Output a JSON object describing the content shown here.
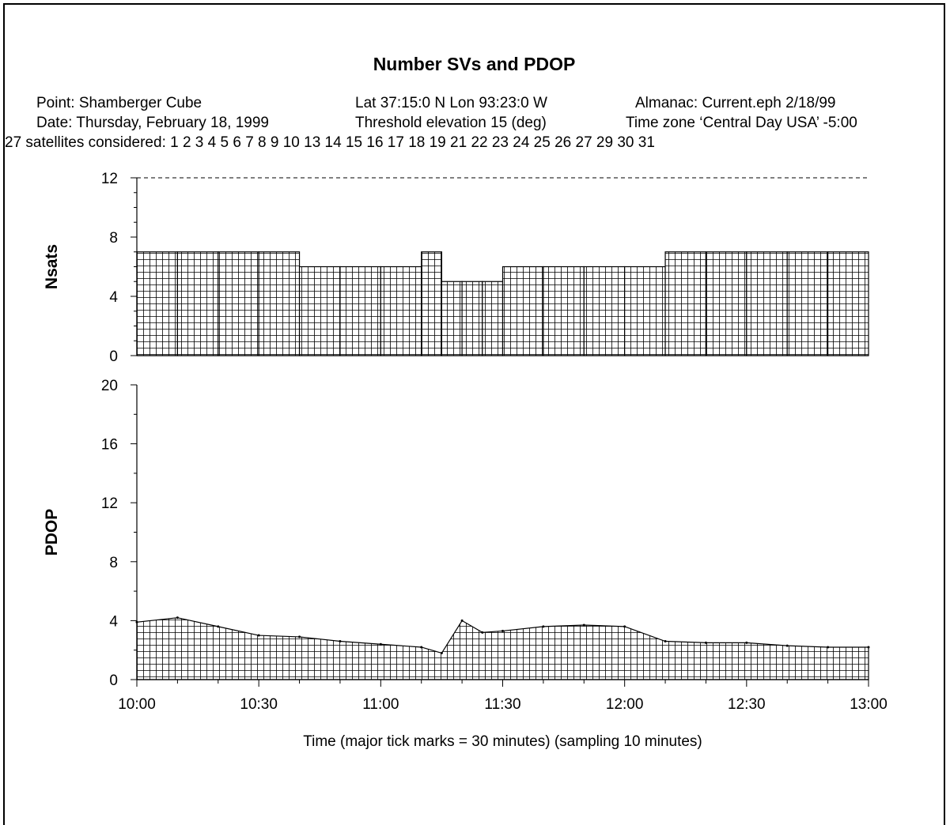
{
  "chart_data": [
    {
      "type": "bar",
      "title": "Number SVs and PDOP",
      "ylabel": "Nsats",
      "ylim": [
        0,
        12
      ],
      "yticks": [
        "0",
        "4",
        "8",
        "12"
      ],
      "series": [
        {
          "x_start": [
            "10:00",
            "10:10",
            "10:20",
            "10:30",
            "10:40",
            "10:50",
            "11:00",
            "11:10",
            "11:15",
            "11:20",
            "11:25",
            "11:30",
            "11:40",
            "11:50",
            "12:00",
            "12:10",
            "12:20",
            "12:30",
            "12:40",
            "12:50"
          ],
          "x_end": [
            "10:10",
            "10:20",
            "10:30",
            "10:40",
            "10:50",
            "11:00",
            "11:10",
            "11:15",
            "11:20",
            "11:25",
            "11:30",
            "11:40",
            "11:50",
            "12:00",
            "12:10",
            "12:20",
            "12:30",
            "12:40",
            "12:50",
            "13:00"
          ],
          "values": [
            7,
            7,
            7,
            7,
            6,
            6,
            6,
            7,
            5,
            5,
            5,
            6,
            6,
            6,
            6,
            7,
            7,
            7,
            7,
            7
          ]
        }
      ],
      "reference_line": {
        "y": 12,
        "style": "dashed"
      }
    },
    {
      "type": "area",
      "ylabel": "PDOP",
      "ylim": [
        0,
        20
      ],
      "yticks": [
        "0",
        "4",
        "8",
        "12",
        "16",
        "20"
      ],
      "xlabel": "Time (major tick marks = 30 minutes) (sampling 10 minutes)",
      "xticks": [
        "10:00",
        "10:30",
        "11:00",
        "11:30",
        "12:00",
        "12:30",
        "13:00"
      ],
      "series": [
        {
          "x": [
            "10:00",
            "10:10",
            "10:20",
            "10:30",
            "10:40",
            "10:50",
            "11:00",
            "11:10",
            "11:15",
            "11:20",
            "11:25",
            "11:30",
            "11:40",
            "11:50",
            "12:00",
            "12:10",
            "12:20",
            "12:30",
            "12:40",
            "12:50",
            "13:00"
          ],
          "values": [
            3.9,
            4.2,
            3.6,
            3.0,
            2.9,
            2.6,
            2.4,
            2.2,
            1.8,
            4.0,
            3.2,
            3.3,
            3.6,
            3.7,
            3.6,
            2.6,
            2.5,
            2.5,
            2.3,
            2.2,
            2.2
          ]
        }
      ]
    }
  ],
  "header": {
    "point": "Point: Shamberger Cube",
    "latlon": "Lat 37:15:0 N Lon 93:23:0 W",
    "almanac": "Almanac: Current.eph 2/18/99",
    "date": "Date: Thursday, February 18, 1999",
    "threshold": "Threshold elevation 15 (deg)",
    "timezone": "Time zone ‘Central Day USA’ -5:00",
    "satellites": "27 satellites considered: 1 2 3 4 5 6 7 8 9 10 13 14 15 16 17 18 19 21 22 23 24 25 26 27 29 30 31"
  }
}
